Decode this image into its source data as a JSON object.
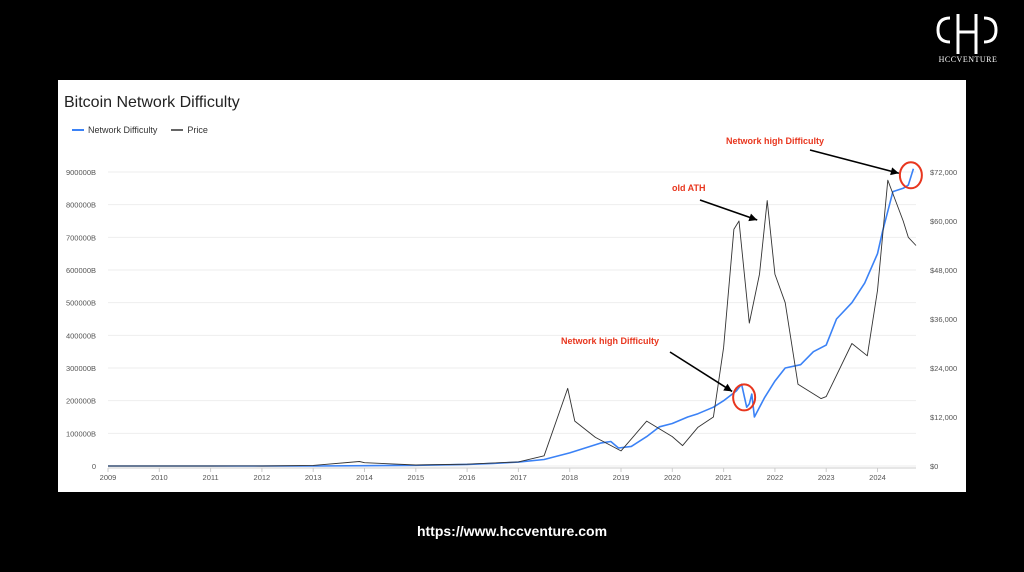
{
  "brand": {
    "logo_text": "HCCVENTURE",
    "url": "https://www.hccventure.com"
  },
  "colors": {
    "difficulty": "#3b82f6",
    "price": "#333333",
    "annotation": "#e8361e",
    "arrow": "#000000"
  },
  "chart_data": {
    "type": "line",
    "title": "Bitcoin Network Difficulty",
    "legend": [
      "Network Difficulty",
      "Price"
    ],
    "legend_placement": "top-left",
    "grid": true,
    "x_ticks": [
      "2009",
      "2010",
      "2011",
      "2012",
      "2013",
      "2014",
      "2015",
      "2016",
      "2017",
      "2018",
      "2019",
      "2020",
      "2021",
      "2022",
      "2023",
      "2024"
    ],
    "y_left_ticks": [
      "0",
      "100000B",
      "200000B",
      "300000B",
      "400000B",
      "500000B",
      "600000B",
      "700000B",
      "800000B",
      "900000B"
    ],
    "y_right_ticks": [
      "$0",
      "$12,000",
      "$24,000",
      "$36,000",
      "$48,000",
      "$60,000",
      "$72,000"
    ],
    "xlim": [
      2009,
      2024.75
    ],
    "ylim_left": [
      0,
      900000
    ],
    "ylim_right": [
      0,
      72000
    ],
    "series": [
      {
        "name": "Network Difficulty",
        "axis": "left",
        "x": [
          2009,
          2010,
          2011,
          2012,
          2013,
          2014,
          2015,
          2016,
          2016.5,
          2017,
          2017.5,
          2018,
          2018.3,
          2018.6,
          2018.8,
          2018.95,
          2019.2,
          2019.5,
          2019.75,
          2020,
          2020.3,
          2020.5,
          2020.8,
          2021,
          2021.25,
          2021.35,
          2021.45,
          2021.5,
          2021.55,
          2021.6,
          2021.8,
          2022,
          2022.2,
          2022.5,
          2022.75,
          2023,
          2023.2,
          2023.5,
          2023.75,
          2024,
          2024.1,
          2024.3,
          2024.5,
          2024.6,
          2024.7
        ],
        "values": [
          0,
          0,
          0,
          0,
          0,
          1000,
          2000,
          5000,
          8000,
          12000,
          20000,
          40000,
          55000,
          70000,
          75000,
          55000,
          60000,
          90000,
          120000,
          130000,
          150000,
          160000,
          180000,
          200000,
          230000,
          250000,
          180000,
          190000,
          220000,
          150000,
          210000,
          260000,
          300000,
          310000,
          350000,
          370000,
          450000,
          500000,
          560000,
          650000,
          720000,
          840000,
          850000,
          860000,
          910000
        ]
      },
      {
        "name": "Price",
        "axis": "right",
        "x": [
          2009,
          2010,
          2011,
          2011.5,
          2012,
          2013,
          2013.9,
          2014,
          2015,
          2016,
          2017,
          2017.5,
          2017.96,
          2018.1,
          2018.5,
          2019,
          2019.5,
          2020,
          2020.2,
          2020.5,
          2020.8,
          2021,
          2021.2,
          2021.3,
          2021.5,
          2021.7,
          2021.85,
          2022,
          2022.2,
          2022.45,
          2022.9,
          2023,
          2023.5,
          2023.8,
          2024,
          2024.2,
          2024.5,
          2024.6,
          2024.75
        ],
        "values": [
          0,
          0,
          0,
          30,
          10,
          150,
          1100,
          800,
          250,
          450,
          1000,
          2500,
          19000,
          11000,
          7000,
          3700,
          11000,
          7200,
          5000,
          9500,
          12000,
          29000,
          58000,
          60000,
          35000,
          47000,
          65000,
          47000,
          40000,
          20000,
          16500,
          17000,
          30000,
          27000,
          43000,
          70000,
          60000,
          56000,
          54000
        ]
      }
    ],
    "annotations": [
      {
        "text": "Network high Difficulty",
        "target_date": 2021.4
      },
      {
        "text": "old ATH",
        "target_date": 2021.85
      },
      {
        "text": "Network high Difficulty",
        "target_date": 2024.65
      }
    ]
  }
}
